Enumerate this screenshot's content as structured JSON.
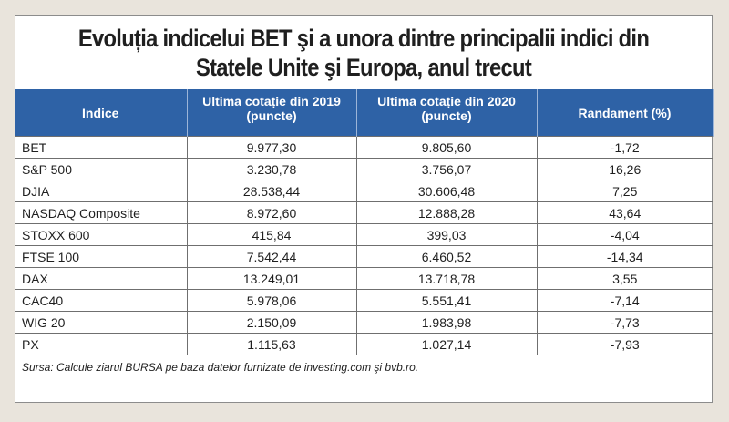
{
  "title": {
    "line1": "Evoluția indicelui BET şi a unora dintre principalii indici din",
    "line2": "Statele Unite şi Europa, anul trecut"
  },
  "table": {
    "headers": [
      "Indice",
      "Ultima cotație din 2019 (puncte)",
      "Ultima cotație din 2020 (puncte)",
      "Randament (%)"
    ],
    "rows": [
      [
        "BET",
        "9.977,30",
        "9.805,60",
        "-1,72"
      ],
      [
        "S&P 500",
        "3.230,78",
        "3.756,07",
        "16,26"
      ],
      [
        "DJIA",
        "28.538,44",
        "30.606,48",
        "7,25"
      ],
      [
        "NASDAQ Composite",
        "8.972,60",
        "12.888,28",
        "43,64"
      ],
      [
        "STOXX 600",
        "415,84",
        "399,03",
        "-4,04"
      ],
      [
        "FTSE 100",
        "7.542,44",
        "6.460,52",
        "-14,34"
      ],
      [
        "DAX",
        "13.249,01",
        "13.718,78",
        "3,55"
      ],
      [
        "CAC40",
        "5.978,06",
        "5.551,41",
        "-7,14"
      ],
      [
        "WIG 20",
        "2.150,09",
        "1.983,98",
        "-7,73"
      ],
      [
        "PX",
        "1.115,63",
        "1.027,14",
        "-7,93"
      ]
    ]
  },
  "source": "Sursa: Calcule ziarul BURSA pe baza datelor furnizate de investing.com şi bvb.ro.",
  "colors": {
    "header_bg": "#2e62a6",
    "header_text": "#ffffff",
    "background": "#e9e4dc"
  }
}
